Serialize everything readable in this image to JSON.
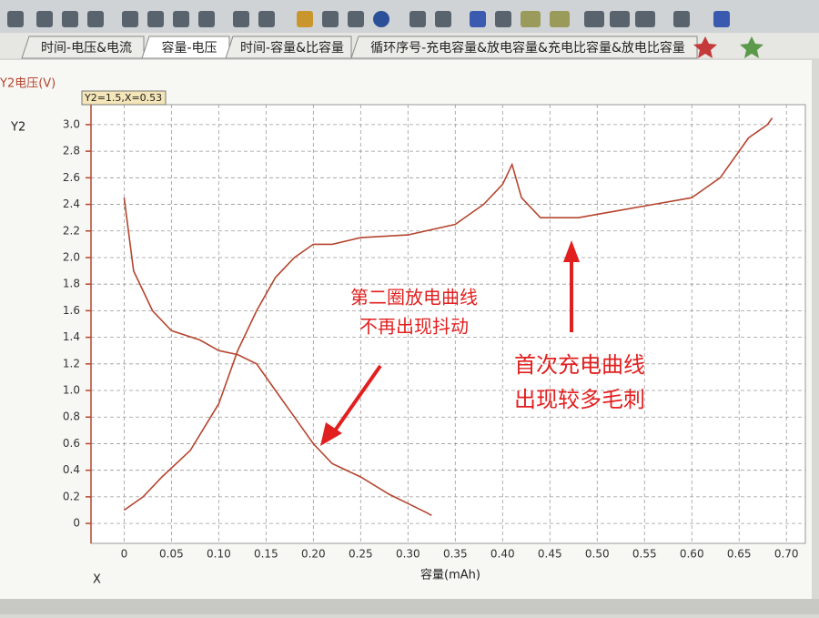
{
  "tabs": [
    "时间-电压&电流",
    "容量-电压",
    "时间-容量&比容量",
    "循环序号-充电容量&放电容量&充电比容量&放电比容量"
  ],
  "chart_data": {
    "type": "line",
    "y_axis_label": "Y2电压(V)",
    "y_axis_name": "Y2",
    "x_axis_name": "X",
    "x_axis_label": "容量(mAh)",
    "cursor_readout": "Y2=1.5,X=0.53",
    "xlim": [
      -0.035,
      0.72
    ],
    "ylim": [
      -0.15,
      3.15
    ],
    "xticks": [
      0,
      0.05,
      {
        "value": 0.1,
        "label": "0.10"
      },
      0.15,
      {
        "value": 0.2,
        "label": "0.20"
      },
      0.25,
      {
        "value": 0.3,
        "label": "0.30"
      },
      0.35,
      {
        "value": 0.4,
        "label": "0.40"
      },
      0.45,
      {
        "value": 0.5,
        "label": "0.50"
      },
      0.55,
      {
        "value": 0.6,
        "label": "0.60"
      },
      0.65,
      {
        "value": 0.7,
        "label": "0.70"
      }
    ],
    "yticks": [
      0,
      0.2,
      0.4,
      0.6,
      0.8,
      {
        "value": 1,
        "label": "1.0"
      },
      1.2,
      1.4,
      1.6,
      1.8,
      {
        "value": 2,
        "label": "2.0"
      },
      2.2,
      2.4,
      2.6,
      2.8,
      {
        "value": 3,
        "label": "3.0"
      }
    ],
    "grid": true,
    "series": [
      {
        "color": "#b5452f",
        "x": [
          0,
          0.01,
          0.03,
          0.05,
          0.08,
          0.1,
          0.12,
          0.14,
          0.16,
          0.18,
          0.2,
          0.22,
          0.25,
          0.28,
          0.3,
          0.32,
          0.325
        ],
        "values": [
          2.45,
          1.9,
          1.6,
          1.45,
          1.38,
          1.3,
          1.27,
          1.2,
          1.0,
          0.8,
          0.6,
          0.45,
          0.35,
          0.22,
          0.15,
          0.08,
          0.06
        ]
      },
      {
        "color": "#b5452f",
        "x": [
          0,
          0.02,
          0.04,
          0.07,
          0.1,
          0.12,
          0.14,
          0.16,
          0.18,
          0.2,
          0.22,
          0.25,
          0.3,
          0.35,
          0.38,
          0.4,
          0.41,
          0.42,
          0.44,
          0.48,
          0.52,
          0.56,
          0.6,
          0.63,
          0.65,
          0.66,
          0.68,
          0.685
        ],
        "values": [
          0.1,
          0.2,
          0.35,
          0.55,
          0.9,
          1.3,
          1.6,
          1.85,
          2.0,
          2.1,
          2.1,
          2.15,
          2.17,
          2.25,
          2.4,
          2.55,
          2.7,
          2.45,
          2.3,
          2.3,
          2.35,
          2.4,
          2.45,
          2.6,
          2.8,
          2.9,
          3.0,
          3.05
        ]
      }
    ],
    "annotations": [
      "第二圈放电曲线",
      "不再出现抖动",
      "首次充电曲线",
      "出现较多毛刺"
    ]
  }
}
